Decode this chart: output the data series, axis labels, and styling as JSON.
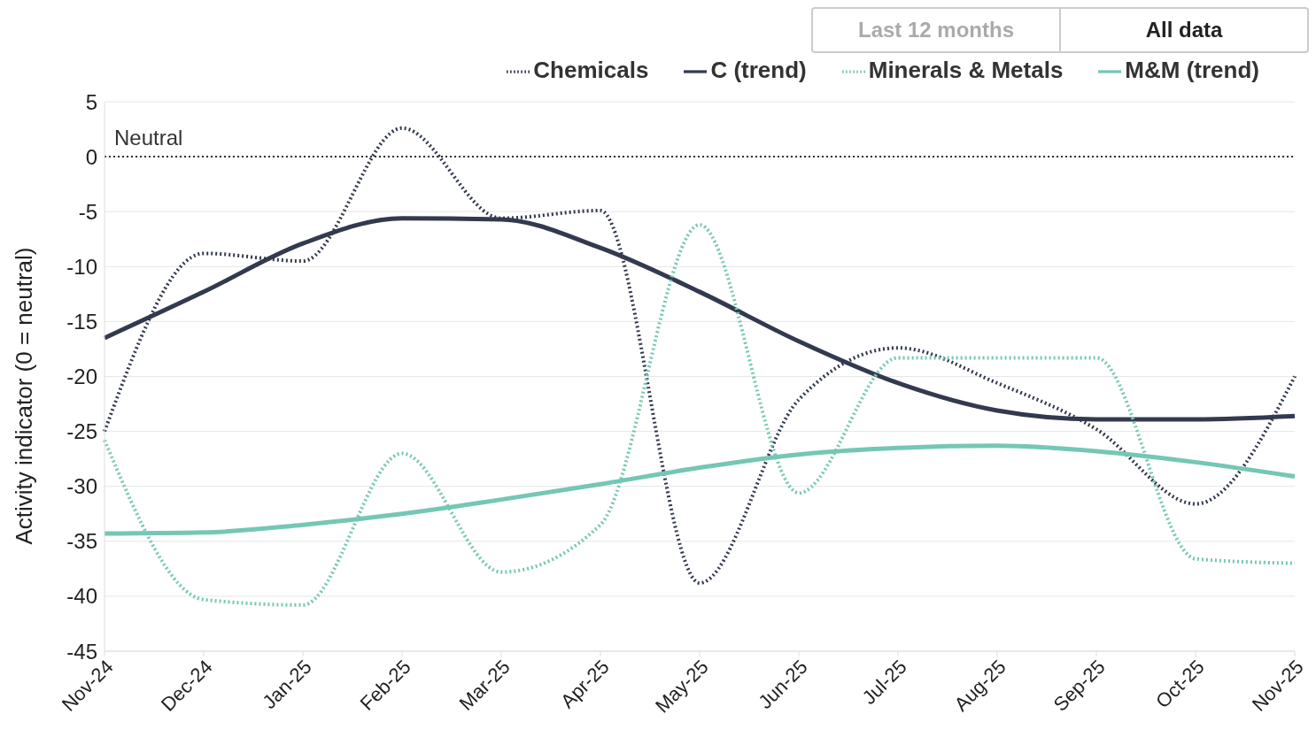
{
  "chart_data": {
    "type": "line",
    "ylabel": "Activity indicator (0 = neutral)",
    "annotations": [
      "Last 12 months",
      "All data"
    ],
    "categories": [
      "Nov-24",
      "Dec-24",
      "Jan-25",
      "Feb-25",
      "Mar-25",
      "Apr-25",
      "May-25",
      "Jun-25",
      "Jul-25",
      "Aug-25",
      "Sep-25",
      "Oct-25",
      "Nov-25"
    ],
    "series": [
      {
        "name": "Chemicals",
        "color": "#333a4f",
        "line_style": "dotted",
        "values": [
          -25,
          -8.8,
          -9.5,
          2.6,
          -5.6,
          -4.9,
          -38.8,
          -22.1,
          -17.4,
          -20.6,
          -24.8,
          -31.6,
          -20
        ]
      },
      {
        "name": "C (trend)",
        "color": "#333a4f",
        "line_style": "solid",
        "values": [
          -16.5,
          -12.3,
          -7.9,
          -5.6,
          -5.7,
          -8.3,
          -12.3,
          -16.8,
          -20.6,
          -23.1,
          -23.9,
          -23.9,
          -23.6
        ]
      },
      {
        "name": "Minerals & Metals",
        "color": "#74c7b4",
        "line_style": "dotted",
        "values": [
          -25.8,
          -40.3,
          -40.8,
          -27,
          -37.8,
          -33.5,
          -6.2,
          -30.6,
          -18.3,
          -18.3,
          -18.3,
          -36.6,
          -37
        ]
      },
      {
        "name": "M&M (trend)",
        "color": "#74c7b4",
        "line_style": "solid",
        "values": [
          -34.3,
          -34.2,
          -33.5,
          -32.5,
          -31.2,
          -29.8,
          -28.3,
          -27.1,
          -26.5,
          -26.3,
          -26.8,
          -27.8,
          -29.1
        ]
      }
    ],
    "ylim": [
      -45,
      5
    ],
    "yticks": [
      -45,
      -40,
      -35,
      -30,
      -25,
      -20,
      -15,
      -10,
      -5,
      0,
      5
    ],
    "ref_lines": [
      {
        "axis": "y",
        "value": 0,
        "label": "Neutral",
        "color": "#333333",
        "line_style": "dotted"
      }
    ],
    "grid": "y",
    "legend": "top right",
    "marker": "none"
  }
}
